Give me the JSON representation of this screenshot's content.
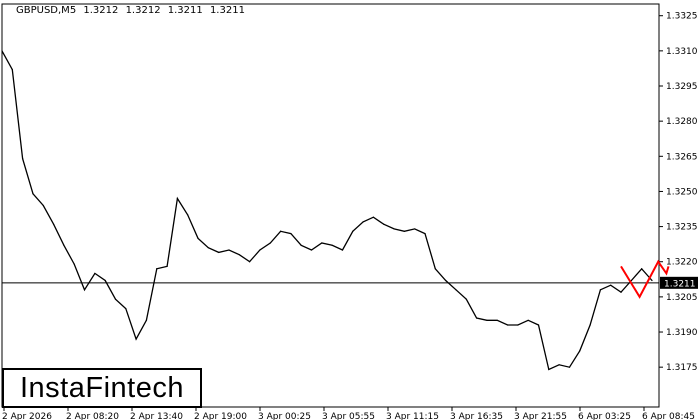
{
  "header": {
    "symbol": "GBPUSD,M5",
    "open": "1.3212",
    "high": "1.3212",
    "low": "1.3211",
    "close": "1.3211"
  },
  "logo": {
    "text": "InstaFintech"
  },
  "chart_data": {
    "type": "line",
    "title": "GBPUSD,M5",
    "ylim": [
      1.3158,
      1.333
    ],
    "y_ticks": [
      "1.3325",
      "1.3310",
      "1.3295",
      "1.3280",
      "1.3265",
      "1.3250",
      "1.3235",
      "1.3220",
      "1.3205",
      "1.3190",
      "1.3175"
    ],
    "x_ticks": [
      "2 Apr 2026",
      "2 Apr 08:20",
      "2 Apr 13:40",
      "2 Apr 19:00",
      "3 Apr 00:25",
      "3 Apr 05:55",
      "3 Apr 11:15",
      "3 Apr 16:35",
      "3 Apr 21:55",
      "6 Apr 03:25",
      "6 Apr 08:45"
    ],
    "grid": false,
    "current_price": "1.3211",
    "colors": {
      "price": "#000000",
      "pattern": "#ff0000",
      "current_label_bg": "#000000"
    },
    "series": [
      {
        "values": [
          1.331,
          1.3302,
          1.3264,
          1.3249,
          1.3244,
          1.3236,
          1.3227,
          1.3219,
          1.3208,
          1.3215,
          1.3212,
          1.3204,
          1.32,
          1.3187,
          1.3195,
          1.3217,
          1.3218,
          1.3247,
          1.324,
          1.323,
          1.3226,
          1.3224,
          1.3225,
          1.3223,
          1.322,
          1.3225,
          1.3228,
          1.3233,
          1.3232,
          1.3227,
          1.3225,
          1.3228,
          1.3227,
          1.3225,
          1.3233,
          1.3237,
          1.3239,
          1.3236,
          1.3234,
          1.3233,
          1.3234,
          1.3232,
          1.3217,
          1.3212,
          1.3208,
          1.3204,
          1.3196,
          1.3195,
          1.3195,
          1.3193,
          1.3193,
          1.3195,
          1.3193,
          1.3174,
          1.3176,
          1.3175,
          1.3182,
          1.3193,
          1.3208,
          1.321,
          1.3207,
          1.3212,
          1.3217,
          1.3212
        ]
      }
    ],
    "pattern": {
      "name": "double top",
      "points": [
        {
          "bar": 60.0,
          "price": 1.3218
        },
        {
          "bar": 61.8,
          "price": 1.3205
        },
        {
          "bar": 63.6,
          "price": 1.322
        },
        {
          "bar": 64.4,
          "price": 1.3215
        },
        {
          "bar": 64.6,
          "price": 1.3218
        }
      ]
    }
  }
}
